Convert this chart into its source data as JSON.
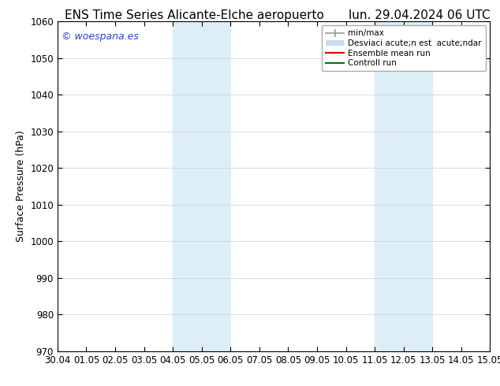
{
  "title_left": "ENS Time Series Alicante-Elche aeropuerto",
  "title_right": "lun. 29.04.2024 06 UTC",
  "ylabel": "Surface Pressure (hPa)",
  "ylim": [
    970,
    1060
  ],
  "yticks": [
    970,
    980,
    990,
    1000,
    1010,
    1020,
    1030,
    1040,
    1050,
    1060
  ],
  "xtick_labels": [
    "30.04",
    "01.05",
    "02.05",
    "03.05",
    "04.05",
    "05.05",
    "06.05",
    "07.05",
    "08.05",
    "09.05",
    "10.05",
    "11.05",
    "12.05",
    "13.05",
    "14.05",
    "15.05"
  ],
  "shaded_bands": [
    {
      "xstart": 4,
      "xend": 6
    },
    {
      "xstart": 11,
      "xend": 13
    }
  ],
  "shade_color": "#ddeef7",
  "watermark": "© woespana.es",
  "watermark_color": "#2244cc",
  "background_color": "#ffffff",
  "grid_color": "#cccccc",
  "title_fontsize": 11,
  "tick_fontsize": 8.5,
  "ylabel_fontsize": 9,
  "legend_label_minmax": "min/max",
  "legend_label_std": "Desviaci acute;n est  acute;ndar",
  "legend_label_ens": "Ensemble mean run",
  "legend_label_ctrl": "Controll run",
  "legend_color_minmax": "#999999",
  "legend_color_std": "#c8ddf0",
  "legend_color_ens": "#dd0000",
  "legend_color_ctrl": "#007700"
}
